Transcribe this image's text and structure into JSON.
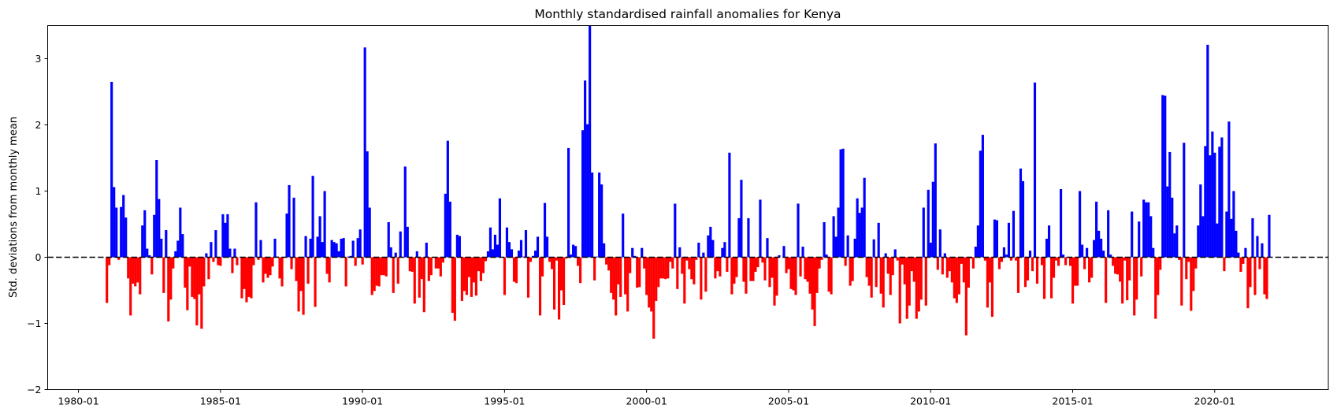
{
  "chart_data": {
    "type": "bar",
    "title": "Monthly standardised rainfall anomalies for Kenya",
    "xlabel": "",
    "ylabel": "Std. deviations from monthly mean",
    "x_start": "1981-01",
    "x_end": "2021-12",
    "xlim": [
      "1978-12",
      "2024-01"
    ],
    "ylim": [
      -2,
      3.5
    ],
    "x_ticks": [
      "1980-01",
      "1985-01",
      "1990-01",
      "1995-01",
      "2000-01",
      "2005-01",
      "2010-01",
      "2015-01",
      "2020-01"
    ],
    "y_ticks": [
      3,
      2,
      1,
      0,
      -1,
      -2
    ],
    "grid": false,
    "reference_line": {
      "y": 0,
      "style": "dashed",
      "color": "#000000"
    },
    "colors": {
      "positive": "#0000ff",
      "negative": "#ff0000"
    },
    "values": [
      -0.69,
      -0.12,
      2.65,
      1.06,
      0.75,
      -0.04,
      0.76,
      0.94,
      0.6,
      -0.32,
      -0.88,
      -0.4,
      -0.44,
      -0.38,
      -0.56,
      0.48,
      0.71,
      0.13,
      0.03,
      -0.26,
      0.64,
      1.47,
      0.88,
      0.28,
      -0.54,
      0.41,
      -0.97,
      -0.64,
      -0.17,
      0.09,
      0.25,
      0.75,
      0.35,
      -0.46,
      -0.8,
      -0.14,
      -0.6,
      -0.63,
      -1.03,
      -0.56,
      -1.08,
      -0.44,
      0.06,
      -0.33,
      0.23,
      -0.07,
      0.41,
      -0.12,
      -0.13,
      0.65,
      0.52,
      0.65,
      0.13,
      -0.24,
      0.13,
      -0.12,
      0.0,
      -0.62,
      -0.48,
      -0.68,
      -0.6,
      -0.62,
      -0.12,
      0.83,
      -0.04,
      0.26,
      -0.38,
      -0.25,
      -0.31,
      -0.27,
      -0.14,
      0.28,
      0.01,
      -0.32,
      -0.44,
      -0.01,
      0.66,
      1.09,
      -0.18,
      0.9,
      -0.36,
      -0.82,
      -0.51,
      -0.87,
      0.32,
      -0.4,
      0.28,
      1.23,
      -0.75,
      0.31,
      0.62,
      0.23,
      1.0,
      -0.25,
      -0.38,
      0.26,
      0.23,
      0.21,
      0.09,
      0.28,
      0.29,
      -0.44,
      0.01,
      0.02,
      0.25,
      -0.13,
      0.29,
      0.42,
      -0.11,
      3.17,
      1.6,
      0.75,
      -0.57,
      -0.51,
      -0.43,
      -0.44,
      -0.27,
      -0.27,
      -0.29,
      0.53,
      0.15,
      -0.54,
      0.07,
      -0.4,
      0.39,
      0.0,
      1.37,
      0.46,
      -0.21,
      -0.22,
      -0.7,
      0.09,
      -0.61,
      -0.33,
      -0.83,
      0.22,
      -0.36,
      -0.27,
      -0.01,
      -0.17,
      -0.17,
      -0.29,
      -0.08,
      0.96,
      1.76,
      0.84,
      -0.84,
      -0.96,
      0.34,
      0.32,
      -0.66,
      -0.51,
      -0.57,
      -0.3,
      -0.6,
      -0.38,
      -0.58,
      -0.21,
      -0.36,
      -0.24,
      -0.06,
      0.09,
      0.45,
      0.12,
      0.34,
      0.19,
      0.89,
      0.0,
      -0.57,
      0.45,
      0.23,
      0.12,
      -0.37,
      -0.39,
      0.1,
      0.26,
      0.01,
      0.41,
      -0.61,
      -0.07,
      0.02,
      0.1,
      0.31,
      -0.88,
      -0.29,
      0.82,
      0.31,
      -0.07,
      -0.18,
      -0.79,
      -0.05,
      -0.94,
      -0.5,
      -0.72,
      -0.02,
      1.65,
      0.04,
      0.19,
      0.17,
      -0.13,
      -0.39,
      1.92,
      2.67,
      2.01,
      3.6,
      1.28,
      -0.35,
      0.01,
      1.28,
      1.1,
      0.21,
      -0.11,
      -0.2,
      -0.54,
      -0.64,
      -0.88,
      -0.41,
      -0.6,
      0.66,
      -0.56,
      -0.82,
      -0.24,
      0.14,
      0.02,
      -0.46,
      -0.45,
      0.14,
      -0.17,
      -0.57,
      -0.76,
      -0.82,
      -1.23,
      -0.66,
      -0.45,
      -0.32,
      -0.32,
      -0.33,
      -0.32,
      -0.07,
      -0.17,
      0.81,
      -0.48,
      0.15,
      -0.25,
      -0.7,
      -0.05,
      -0.18,
      -0.33,
      -0.41,
      -0.04,
      0.22,
      -0.64,
      0.07,
      -0.52,
      0.33,
      0.46,
      0.26,
      -0.32,
      -0.21,
      -0.29,
      0.14,
      0.23,
      -0.22,
      1.58,
      -0.56,
      -0.4,
      -0.3,
      0.59,
      1.17,
      -0.37,
      -0.55,
      0.59,
      -0.36,
      -0.36,
      -0.22,
      -0.15,
      0.87,
      -0.08,
      -0.35,
      0.29,
      -0.45,
      -0.31,
      -0.73,
      -0.58,
      0.03,
      0.0,
      0.17,
      -0.24,
      -0.18,
      -0.48,
      -0.5,
      -0.57,
      0.81,
      -0.29,
      0.16,
      -0.33,
      -0.37,
      -0.55,
      -0.79,
      -1.04,
      -0.54,
      -0.17,
      -0.04,
      0.53,
      0.04,
      -0.52,
      -0.56,
      0.62,
      0.31,
      0.75,
      1.63,
      1.64,
      -0.13,
      0.33,
      -0.43,
      -0.36,
      0.28,
      0.89,
      0.67,
      0.75,
      1.2,
      -0.3,
      -0.43,
      -0.61,
      0.27,
      -0.45,
      0.52,
      -0.55,
      -0.76,
      0.06,
      -0.25,
      -0.57,
      -0.27,
      0.12,
      -0.05,
      -1.0,
      -0.11,
      -0.41,
      -0.93,
      -0.73,
      -0.21,
      -0.37,
      -0.93,
      -0.82,
      -0.64,
      0.75,
      -0.73,
      1.02,
      0.22,
      1.14,
      1.72,
      -0.19,
      0.42,
      -0.26,
      0.06,
      -0.31,
      -0.21,
      -0.38,
      -0.62,
      -0.69,
      -0.56,
      -0.1,
      -0.38,
      -1.18,
      -0.46,
      -0.02,
      -0.17,
      0.16,
      0.48,
      1.61,
      1.85,
      -0.05,
      -0.76,
      -0.38,
      -0.9,
      0.57,
      0.56,
      -0.18,
      -0.07,
      0.15,
      0.04,
      0.52,
      -0.05,
      0.7,
      -0.05,
      -0.54,
      1.34,
      1.15,
      -0.45,
      -0.35,
      0.1,
      -0.21,
      2.64,
      -0.4,
      -0.01,
      -0.12,
      -0.63,
      0.28,
      0.48,
      -0.62,
      -0.31,
      -0.05,
      -0.13,
      1.03,
      0.04,
      -0.12,
      -0.01,
      -0.13,
      -0.7,
      -0.43,
      -0.43,
      1.0,
      0.19,
      -0.18,
      0.14,
      -0.38,
      -0.31,
      0.26,
      0.84,
      0.4,
      0.28,
      0.1,
      -0.69,
      0.71,
      0.04,
      -0.13,
      -0.25,
      -0.26,
      -0.37,
      -0.7,
      -0.05,
      -0.65,
      -0.35,
      0.69,
      -0.88,
      -0.64,
      0.54,
      -0.29,
      0.87,
      0.83,
      0.83,
      0.62,
      0.14,
      -0.93,
      -0.57,
      -0.19,
      2.45,
      2.44,
      1.07,
      1.59,
      0.9,
      0.36,
      0.48,
      -0.04,
      -0.73,
      1.73,
      -0.33,
      -0.07,
      -0.81,
      -0.51,
      -0.17,
      0.48,
      1.1,
      0.62,
      1.68,
      3.21,
      1.54,
      1.9,
      1.58,
      0.51,
      1.67,
      1.81,
      -0.21,
      0.69,
      2.05,
      0.58,
      1.0,
      0.4,
      0.07,
      -0.22,
      -0.1,
      0.14,
      -0.77,
      -0.45,
      0.59,
      -0.57,
      0.32,
      -0.18,
      0.21,
      -0.56,
      -0.63,
      0.64
    ]
  }
}
